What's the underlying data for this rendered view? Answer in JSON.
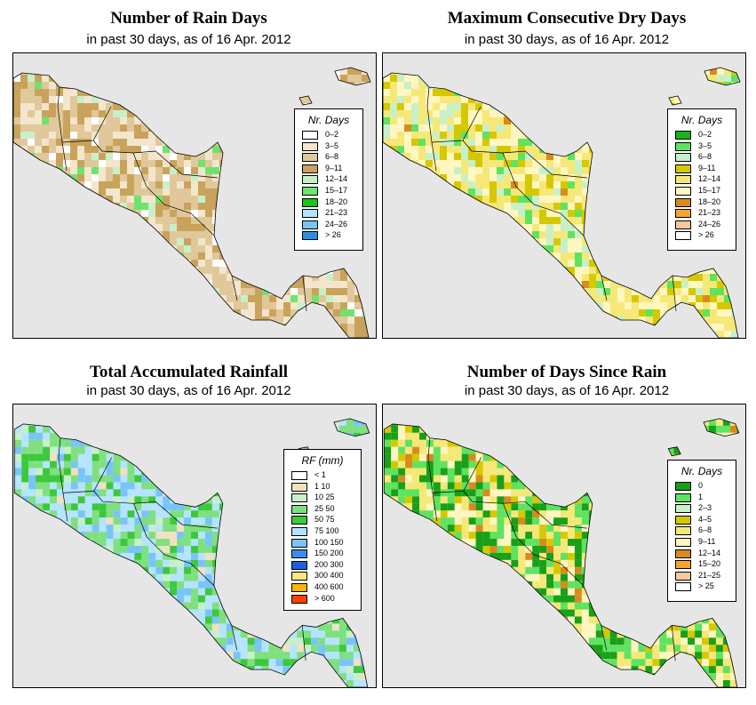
{
  "panels": [
    {
      "id": "rain-days",
      "title": "Number of Rain Days",
      "subtitle": "in past 30 days, as of  16 Apr. 2012",
      "legend": {
        "title": "Nr. Days",
        "items": [
          {
            "label": "0–2",
            "color": "#ffffff"
          },
          {
            "label": "3–5",
            "color": "#f3e6cc"
          },
          {
            "label": "6–8",
            "color": "#e0c89b"
          },
          {
            "label": "9–11",
            "color": "#c9a35c"
          },
          {
            "label": "12–14",
            "color": "#c8f0c8"
          },
          {
            "label": "15–17",
            "color": "#6ee36e"
          },
          {
            "label": "18–20",
            "color": "#18c418"
          },
          {
            "label": "21–23",
            "color": "#b4e4ff"
          },
          {
            "label": "24–26",
            "color": "#78c4f8"
          },
          {
            "label": "> 26",
            "color": "#2c8fe6"
          }
        ]
      }
    },
    {
      "id": "dry-days",
      "title": "Maximum Consecutive Dry Days",
      "subtitle": "in past 30 days, as of  16 Apr. 2012",
      "legend": {
        "title": "Nr. Days",
        "items": [
          {
            "label": "0–2",
            "color": "#18b418"
          },
          {
            "label": "3–5",
            "color": "#5ee35e"
          },
          {
            "label": "6–8",
            "color": "#c8f0c8"
          },
          {
            "label": "9–11",
            "color": "#d6c800"
          },
          {
            "label": "12–14",
            "color": "#f5e878"
          },
          {
            "label": "15–17",
            "color": "#fff6c0"
          },
          {
            "label": "18–20",
            "color": "#d98a1c"
          },
          {
            "label": "21–23",
            "color": "#f5a628"
          },
          {
            "label": "24–26",
            "color": "#f5c8a0"
          },
          {
            "label": "> 26",
            "color": "#ffffff"
          }
        ]
      }
    },
    {
      "id": "rainfall",
      "title": "Total Accumulated Rainfall",
      "subtitle": "in past 30 days, as of  16 Apr. 2012",
      "legend": {
        "title": "RF (mm)",
        "items": [
          {
            "label": "< 1",
            "color": "#ffffff"
          },
          {
            "label": "1   10",
            "color": "#f3e0c0"
          },
          {
            "label": "10   25",
            "color": "#c8f0c8"
          },
          {
            "label": "25   50",
            "color": "#7ee07e"
          },
          {
            "label": "50   75",
            "color": "#3cc83c"
          },
          {
            "label": "75   100",
            "color": "#b4e4ff"
          },
          {
            "label": "100   150",
            "color": "#78c4f8"
          },
          {
            "label": "150   200",
            "color": "#3c8cf0"
          },
          {
            "label": "200   300",
            "color": "#1e5fe0"
          },
          {
            "label": "300   400",
            "color": "#ffe680"
          },
          {
            "label": "400   600",
            "color": "#ffb400"
          },
          {
            "label": "> 600",
            "color": "#ff4000"
          }
        ]
      }
    },
    {
      "id": "days-since-rain",
      "title": "Number of Days Since Rain",
      "subtitle": "in past 30 days, as of  16 Apr. 2012",
      "legend": {
        "title": "Nr. Days",
        "items": [
          {
            "label": "0",
            "color": "#14a014"
          },
          {
            "label": "1",
            "color": "#5ee35e"
          },
          {
            "label": "2–3",
            "color": "#c8f0c8"
          },
          {
            "label": "4–5",
            "color": "#d6c800"
          },
          {
            "label": "6–8",
            "color": "#f5e878"
          },
          {
            "label": "9–11",
            "color": "#fff6c0"
          },
          {
            "label": "12–14",
            "color": "#d98a1c"
          },
          {
            "label": "15–20",
            "color": "#f5a628"
          },
          {
            "label": "21–25",
            "color": "#f5c8a0"
          },
          {
            "label": "> 25",
            "color": "#ffffff"
          }
        ]
      }
    }
  ],
  "map_colors": {
    "sea": "#e6e6e6",
    "border": "#000000"
  }
}
